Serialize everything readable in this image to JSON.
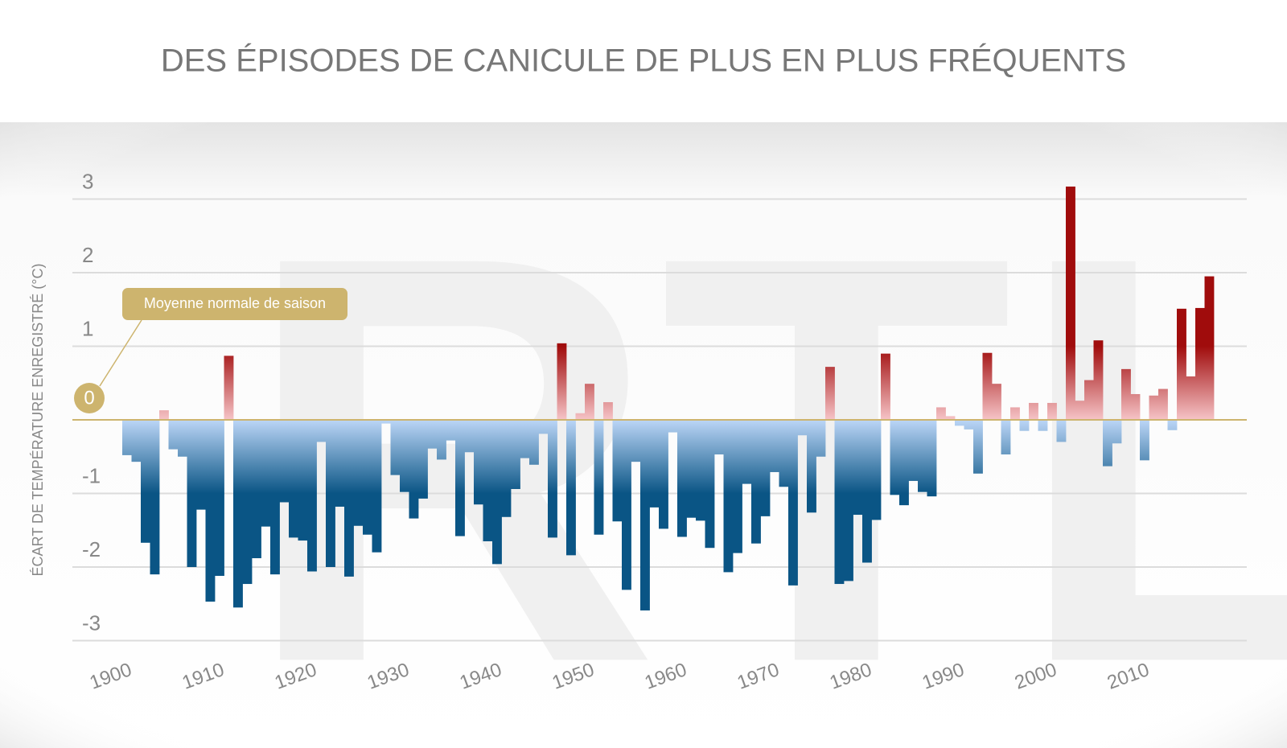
{
  "chart_data": {
    "type": "bar",
    "title": "DES ÉPISODES DE CANICULE DE PLUS EN PLUS FRÉQUENTS",
    "y_label": "ÉCART DE TEMPÉRATURE ENREGISTRÉ (°C)",
    "annotation": "Moyenne normale de saison",
    "watermark": "RTL",
    "x": [
      1900,
      1901,
      1902,
      1903,
      1904,
      1905,
      1906,
      1907,
      1908,
      1909,
      1910,
      1911,
      1912,
      1913,
      1914,
      1915,
      1916,
      1917,
      1918,
      1919,
      1920,
      1921,
      1922,
      1923,
      1924,
      1925,
      1926,
      1927,
      1928,
      1929,
      1930,
      1931,
      1932,
      1933,
      1934,
      1935,
      1936,
      1937,
      1938,
      1939,
      1940,
      1941,
      1942,
      1943,
      1944,
      1945,
      1946,
      1947,
      1948,
      1949,
      1950,
      1951,
      1952,
      1953,
      1954,
      1955,
      1956,
      1957,
      1958,
      1959,
      1960,
      1961,
      1962,
      1963,
      1964,
      1965,
      1966,
      1967,
      1968,
      1969,
      1970,
      1971,
      1972,
      1973,
      1974,
      1975,
      1976,
      1977,
      1978,
      1979,
      1980,
      1981,
      1982,
      1983,
      1984,
      1985,
      1986,
      1987,
      1988,
      1989,
      1990,
      1991,
      1992,
      1993,
      1994,
      1995,
      1996,
      1997,
      1998,
      1999,
      2000,
      2001,
      2002,
      2003,
      2004,
      2005,
      2006,
      2007,
      2008,
      2009,
      2010,
      2011,
      2012,
      2013,
      2014,
      2015,
      2016,
      2017
    ],
    "values": [
      -0.48,
      -0.57,
      -1.67,
      -2.1,
      0.13,
      -0.4,
      -0.5,
      -2.0,
      -1.22,
      -2.47,
      -2.12,
      0.87,
      -2.55,
      -2.23,
      -1.88,
      -1.45,
      -2.1,
      -1.12,
      -1.6,
      -1.64,
      -2.06,
      -0.3,
      -2.0,
      -1.18,
      -2.13,
      -1.44,
      -1.56,
      -1.8,
      -0.05,
      -0.75,
      -0.98,
      -1.34,
      -1.07,
      -0.39,
      -0.54,
      -0.28,
      -1.58,
      -0.44,
      -1.15,
      -1.65,
      -1.96,
      -1.32,
      -0.94,
      -0.52,
      -0.61,
      -0.19,
      -1.6,
      1.04,
      -1.84,
      0.09,
      0.49,
      -1.56,
      0.24,
      -1.38,
      -2.31,
      -0.57,
      -2.59,
      -1.19,
      -1.48,
      -0.17,
      -1.59,
      -1.33,
      -1.37,
      -1.74,
      -0.47,
      -2.07,
      -1.81,
      -0.87,
      -1.68,
      -1.31,
      -0.71,
      -0.91,
      -2.25,
      -0.21,
      -1.26,
      -0.5,
      0.72,
      -2.23,
      -2.19,
      -1.29,
      -1.94,
      -1.36,
      0.9,
      -1.02,
      -1.16,
      -0.83,
      -0.98,
      -1.04,
      0.17,
      0.05,
      -0.08,
      -0.13,
      -0.73,
      0.91,
      0.49,
      -0.47,
      0.17,
      -0.15,
      0.23,
      -0.15,
      0.23,
      -0.3,
      3.17,
      0.26,
      0.54,
      1.08,
      -0.63,
      -0.32,
      0.69,
      0.35,
      -0.55,
      0.33,
      0.42,
      -0.14,
      1.51,
      0.59,
      1.52,
      1.95
    ],
    "xlim": [
      1900,
      2018
    ],
    "xticks": [
      1900,
      1910,
      1920,
      1930,
      1940,
      1950,
      1960,
      1970,
      1980,
      1990,
      2000,
      2010
    ],
    "ylim": [
      -3.3,
      3.3
    ],
    "yticks": [
      -3,
      -2,
      -1,
      0,
      1,
      2,
      3
    ],
    "grid": true,
    "positive_colors": [
      "#f6c4c7",
      "#a00c0c"
    ],
    "negative_colors": [
      "#bcd6f7",
      "#0a5585"
    ],
    "zero_line_color": "#cdb46e"
  }
}
